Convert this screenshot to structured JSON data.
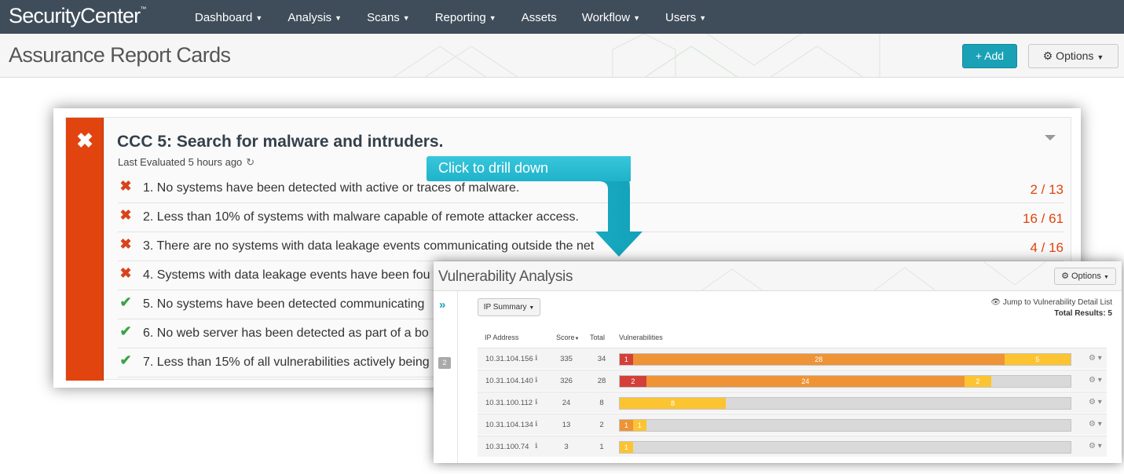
{
  "app": {
    "logo": "SecurityCenter",
    "logo_tm": "™",
    "nav": [
      {
        "label": "Dashboard",
        "caret": true
      },
      {
        "label": "Analysis",
        "caret": true
      },
      {
        "label": "Scans",
        "caret": true
      },
      {
        "label": "Reporting",
        "caret": true
      },
      {
        "label": "Assets",
        "caret": false
      },
      {
        "label": "Workflow",
        "caret": true
      },
      {
        "label": "Users",
        "caret": true
      }
    ]
  },
  "page": {
    "title": "Assurance Report Cards",
    "add_label": "+ Add",
    "options_label": "⚙ Options"
  },
  "card": {
    "status": "fail",
    "status_icon": "✖",
    "title": "CCC 5: Search for malware and intruders.",
    "last_evaluated": "Last Evaluated 5 hours ago",
    "rules": [
      {
        "status": "fail",
        "icon": "✖",
        "text": "1. No systems have been detected with active or traces of malware.",
        "score": "2 / 13"
      },
      {
        "status": "fail",
        "icon": "✖",
        "text": "2. Less than 10% of systems with malware capable of remote attacker access.",
        "score": "16 / 61"
      },
      {
        "status": "fail",
        "icon": "✖",
        "text": "3. There are no systems with data leakage events communicating outside the net",
        "score": "4 / 16"
      },
      {
        "status": "fail",
        "icon": "✖",
        "text": "4. Systems with data leakage events have been fou",
        "score": ""
      },
      {
        "status": "pass",
        "icon": "✔",
        "text": "5. No systems have been detected communicating",
        "score": ""
      },
      {
        "status": "pass",
        "icon": "✔",
        "text": "6. No web server has been detected as part of a bo",
        "score": ""
      },
      {
        "status": "pass",
        "icon": "✔",
        "text": "7. Less than 15% of all vulnerabilities actively being",
        "score": ""
      }
    ]
  },
  "callout": {
    "text": "Click to drill down"
  },
  "vuln": {
    "title": "Vulnerability Analysis",
    "options_label": "⚙ Options",
    "tool_label": "IP Summary",
    "jump_label": "👁 Jump to Vulnerability Detail List",
    "total_results": "Total Results: 5",
    "side_badge": "2",
    "columns": {
      "ip": "IP Address",
      "score": "Score",
      "total": "Total",
      "vulns": "Vulnerabilities"
    },
    "rows": [
      {
        "ip": "10.31.104.156",
        "score": "335",
        "total": "34",
        "segments": [
          {
            "sev": "crit",
            "count": 1
          },
          {
            "sev": "high",
            "count": 28
          },
          {
            "sev": "med",
            "count": 5
          }
        ]
      },
      {
        "ip": "10.31.104.140",
        "score": "326",
        "total": "28",
        "segments": [
          {
            "sev": "crit",
            "count": 2
          },
          {
            "sev": "high",
            "count": 24
          },
          {
            "sev": "med",
            "count": 2
          }
        ]
      },
      {
        "ip": "10.31.100.112",
        "score": "24",
        "total": "8",
        "segments": [
          {
            "sev": "med",
            "count": 8
          }
        ]
      },
      {
        "ip": "10.31.104.134",
        "score": "13",
        "total": "2",
        "segments": [
          {
            "sev": "high",
            "count": 1
          },
          {
            "sev": "med",
            "count": 1
          }
        ]
      },
      {
        "ip": "10.31.100.74",
        "score": "3",
        "total": "1",
        "segments": [
          {
            "sev": "med",
            "count": 1
          }
        ]
      }
    ],
    "bar_max": 34
  },
  "colors": {
    "nav_bg": "#3f4d5a",
    "accent": "#1aa1b6",
    "fail": "#e2440f",
    "pass": "#3aa34a",
    "critical": "#d43f3a",
    "high": "#ee9336",
    "medium": "#fdc431"
  }
}
